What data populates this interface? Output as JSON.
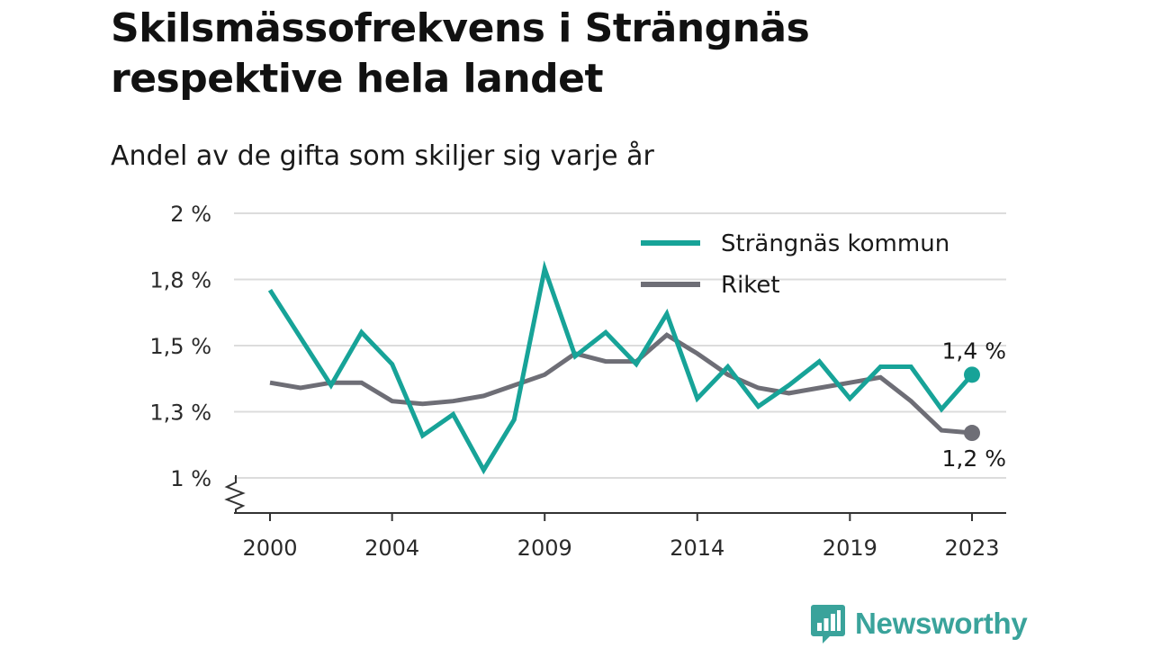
{
  "title": "Skilsmässofrekvens i Strängnäs respektive hela landet",
  "subtitle": "Andel av de gifta som skiljer sig varje år",
  "brand": {
    "name": "Newsworthy"
  },
  "colors": {
    "strangnas": "#17a398",
    "riket": "#6e6e76",
    "grid": "#dcdcdc",
    "axis": "#333333"
  },
  "chart_data": {
    "type": "line",
    "x": [
      2000,
      2001,
      2002,
      2003,
      2004,
      2005,
      2006,
      2007,
      2008,
      2009,
      2010,
      2011,
      2012,
      2013,
      2014,
      2015,
      2016,
      2017,
      2018,
      2019,
      2020,
      2021,
      2022,
      2023
    ],
    "x_tick_labels": [
      "2000",
      "2004",
      "2009",
      "2014",
      "2019",
      "2023"
    ],
    "y_tick_values": [
      1.0,
      1.25,
      1.5,
      1.75,
      2.0
    ],
    "y_tick_labels": [
      "1 %",
      "1,3 %",
      "1,5 %",
      "1,8 %",
      "2 %"
    ],
    "ylim": [
      1.0,
      2.0
    ],
    "y_axis_break": true,
    "grid": true,
    "legend_position": "top-right",
    "series": [
      {
        "name": "Strängnäs kommun",
        "color": "#17a398",
        "values": [
          1.71,
          1.53,
          1.35,
          1.55,
          1.43,
          1.16,
          1.24,
          1.03,
          1.22,
          1.79,
          1.46,
          1.55,
          1.43,
          1.62,
          1.3,
          1.42,
          1.27,
          1.35,
          1.44,
          1.3,
          1.42,
          1.42,
          1.26,
          1.39
        ],
        "end_label": "1,4 %"
      },
      {
        "name": "Riket",
        "color": "#6e6e76",
        "values": [
          1.36,
          1.34,
          1.36,
          1.36,
          1.29,
          1.28,
          1.29,
          1.31,
          1.35,
          1.39,
          1.47,
          1.44,
          1.44,
          1.54,
          1.47,
          1.39,
          1.34,
          1.32,
          1.34,
          1.36,
          1.38,
          1.29,
          1.18,
          1.17
        ],
        "end_label": "1,2 %"
      }
    ]
  }
}
